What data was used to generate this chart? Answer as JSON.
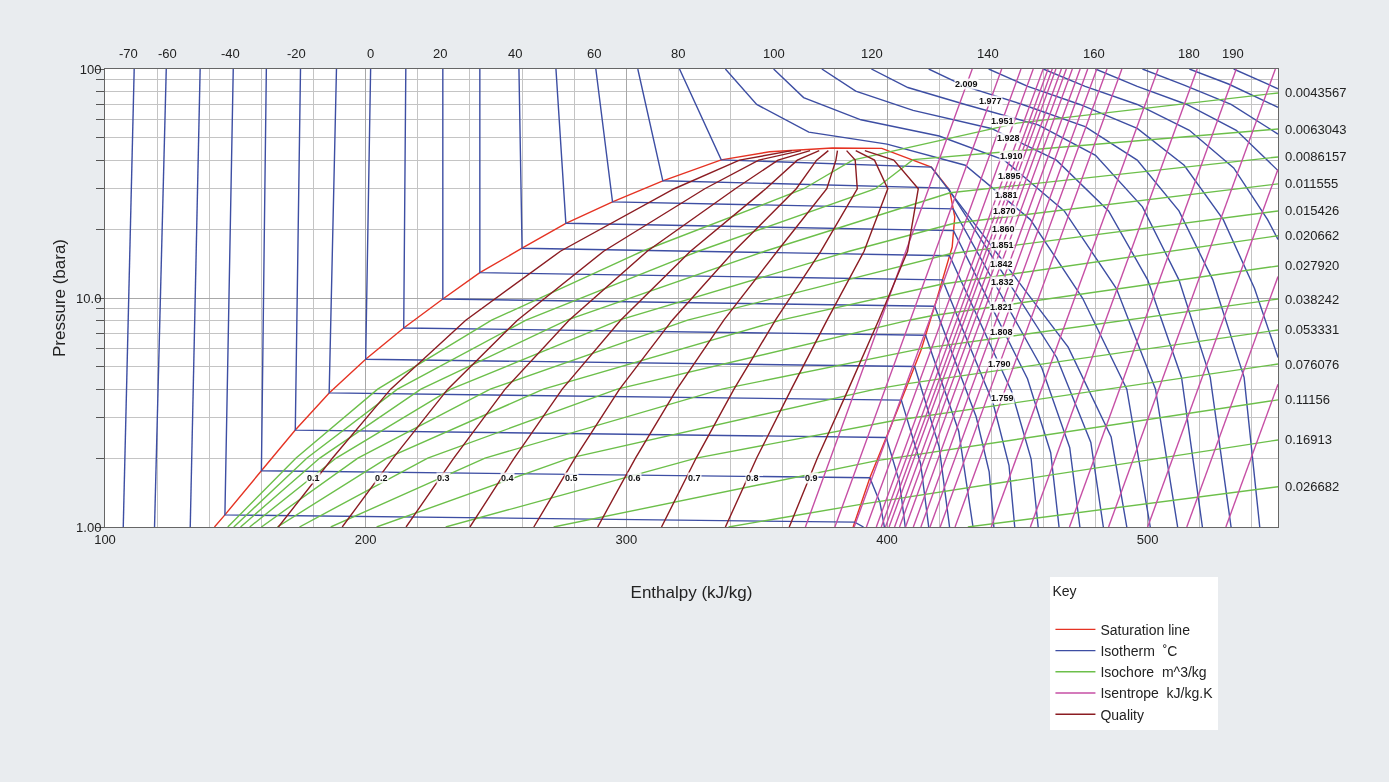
{
  "chart_data": {
    "type": "line",
    "xlabel": "Enthalpy (kJ/kg)",
    "ylabel": "Pressure (bara)",
    "legend_title": "Key",
    "legend": "bottom right",
    "grid": true,
    "log": true,
    "marker": "none",
    "line_style": "solid",
    "xlim": [
      100,
      550
    ],
    "xticks": [
      100,
      200,
      300,
      400,
      500
    ],
    "ylim": [
      1,
      100
    ],
    "yticks": [
      {
        "value": 1,
        "label": "1.00"
      },
      {
        "value": 10,
        "label": "10.0"
      },
      100
    ],
    "series": [
      {
        "name": "Saturation line",
        "color": "#e53323",
        "x": [
          142,
          146,
          160,
          173,
          186,
          200,
          214.6,
          229.6,
          243.8,
          260,
          276.8,
          294.7,
          314,
          336.4,
          355,
          379,
          398,
          417,
          424,
          426,
          425,
          419,
          413,
          404,
          393.5,
          387
        ],
        "values": [
          1,
          1.13,
          1.76,
          2.65,
          3.85,
          5.4,
          7.4,
          9.9,
          12.9,
          16.5,
          21.2,
          26.3,
          32.5,
          40.1,
          43.5,
          45.2,
          45,
          37.3,
          29.6,
          22.6,
          16.7,
          9.8,
          5.9,
          3.24,
          1.65,
          1
        ]
      },
      {
        "name": "Isotherm  ˚C",
        "color": "#3d4ea3",
        "x": [
          111.2,
          107
        ],
        "values": [
          100,
          1
        ]
      },
      {
        "color": "#3d4ea3",
        "x": [
          123.5,
          119
        ],
        "values": [
          100,
          1
        ]
      },
      {
        "color": "#3d4ea3",
        "x": [
          136.5,
          132.7
        ],
        "values": [
          100,
          1
        ]
      },
      {
        "color": "#3d4ea3",
        "x": [
          149.2,
          146,
          387.6,
          391
        ],
        "values": [
          100,
          1.13,
          1.05,
          1
        ]
      },
      {
        "color": "#3d4ea3",
        "x": [
          161.9,
          160,
          393.4,
          397.3,
          399
        ],
        "values": [
          100,
          1.76,
          1.64,
          1.28,
          1
        ]
      },
      {
        "color": "#3d4ea3",
        "x": [
          175,
          173,
          399.7,
          404.8,
          407
        ],
        "values": [
          100,
          2.65,
          2.46,
          1.57,
          1
        ]
      },
      {
        "color": "#3d4ea3",
        "x": [
          188.8,
          186,
          405.5,
          412.9,
          416
        ],
        "values": [
          100,
          3.85,
          3.58,
          1.89,
          1
        ]
      },
      {
        "color": "#3d4ea3",
        "x": [
          201.9,
          200,
          410.6,
          420,
          424
        ],
        "values": [
          100,
          5.4,
          5.02,
          2.24,
          1
        ]
      },
      {
        "color": "#3d4ea3",
        "x": [
          215.4,
          214.6,
          414.8,
          427.5,
          433
        ],
        "values": [
          100,
          7.4,
          6.88,
          2.62,
          1
        ]
      },
      {
        "color": "#3d4ea3",
        "x": [
          229.6,
          229.6,
          418.3,
          426.2,
          434.2,
          439.2,
          441
        ],
        "values": [
          100,
          9.9,
          9.2,
          5.28,
          3.03,
          1.74,
          1
        ]
      },
      {
        "color": "#3d4ea3",
        "x": [
          243.8,
          243.8,
          421.3,
          431,
          440.7,
          446.8,
          449
        ],
        "values": [
          100,
          12.9,
          12,
          6.44,
          3.47,
          1.86,
          1
        ]
      },
      {
        "color": "#3d4ea3",
        "x": [
          258.8,
          260,
          424,
          435.9,
          447.8,
          455.3,
          458
        ],
        "values": [
          100,
          16.5,
          15.3,
          7.74,
          3.91,
          1.98,
          1
        ]
      },
      {
        "color": "#3d4ea3",
        "x": [
          273,
          276.8,
          425.5,
          439.7,
          453.9,
          462.8,
          466
        ],
        "values": [
          100,
          21.2,
          19.7,
          9.35,
          4.44,
          2.11,
          1
        ]
      },
      {
        "color": "#3d4ea3",
        "x": [
          288.3,
          294.7,
          425.4,
          442.4,
          459.4,
          470.1,
          474
        ],
        "values": [
          100,
          26.3,
          24.5,
          11,
          4.95,
          2.22,
          1
        ]
      },
      {
        "color": "#3d4ea3",
        "x": [
          304.4,
          314,
          423.4,
          444.3,
          465.1,
          478.2,
          483
        ],
        "values": [
          100,
          32.5,
          30.2,
          12.9,
          5.5,
          2.34,
          1
        ]
      },
      {
        "color": "#3d4ea3",
        "x": [
          320.4,
          336.4,
          417,
          443.3,
          469.5,
          486,
          492
        ],
        "values": [
          100,
          40.1,
          37.3,
          15.1,
          6.1,
          2.47,
          1
        ]
      },
      {
        "color": "#3d4ea3",
        "x": [
          338,
          350,
          370,
          400,
          430,
          455,
          475,
          492,
          501
        ],
        "values": [
          100,
          70,
          53,
          47,
          38,
          22,
          10,
          4,
          1
        ]
      },
      {
        "color": "#3d4ea3",
        "x": [
          356.5,
          368,
          390,
          420,
          445,
          468,
          488,
          503,
          511.5
        ],
        "values": [
          100,
          75,
          60,
          51,
          40,
          24,
          11,
          4,
          1
        ]
      },
      {
        "color": "#3d4ea3",
        "x": [
          375,
          388,
          410,
          440,
          465,
          485,
          500,
          513,
          521
        ],
        "values": [
          100,
          80,
          66,
          55,
          40,
          24,
          12,
          4.5,
          1
        ]
      },
      {
        "color": "#3d4ea3",
        "x": [
          394,
          408,
          430,
          458,
          480,
          498,
          512,
          524,
          532
        ],
        "values": [
          100,
          83,
          70,
          57,
          42,
          25,
          12,
          4.5,
          1
        ]
      },
      {
        "color": "#3d4ea3",
        "x": [
          416,
          430,
          452,
          476,
          496,
          512,
          525,
          537,
          543
        ],
        "values": [
          100,
          84,
          70,
          56,
          40,
          24,
          12,
          4.5,
          1
        ]
      },
      {
        "color": "#3d4ea3",
        "x": [
          439,
          454,
          474,
          496,
          514,
          529,
          541,
          550
        ],
        "values": [
          100,
          84,
          70,
          55,
          38,
          22,
          11,
          5.5
        ]
      },
      {
        "color": "#3d4ea3",
        "x": [
          460,
          476,
          496,
          516,
          533,
          546,
          550
        ],
        "values": [
          100,
          84,
          70,
          54,
          37,
          22,
          18
        ]
      },
      {
        "color": "#3d4ea3",
        "x": [
          480,
          496,
          515,
          534,
          550
        ],
        "values": [
          100,
          84,
          70,
          54,
          36
        ]
      },
      {
        "color": "#3d4ea3",
        "x": [
          498,
          514,
          532,
          550
        ],
        "values": [
          100,
          85,
          70,
          52
        ]
      },
      {
        "color": "#3d4ea3",
        "x": [
          516,
          531,
          550
        ],
        "values": [
          100,
          86,
          68
        ]
      },
      {
        "color": "#3d4ea3",
        "x": [
          533,
          550
        ],
        "values": [
          100,
          82
        ]
      },
      {
        "name": "Isochore  m^3/kg",
        "color": "#6cbf4a",
        "x": [
          147.1,
          173.3,
          204.6,
          248.3,
          306.1,
          368.1,
          386.8,
          450,
          550
        ],
        "values": [
          1,
          2,
          4,
          8,
          16,
          30,
          40,
          58,
          78.6
        ]
      },
      {
        "color": "#6cbf4a",
        "x": [
          149.4,
          177.5,
          212.2,
          261.5,
          327.6,
          395.6,
          410,
          550
        ],
        "values": [
          1,
          2,
          4,
          8,
          16,
          30,
          40.2,
          54.7
        ]
      },
      {
        "color": "#6cbf4a",
        "x": [
          152,
          182.4,
          221.2,
          277.2,
          353.1,
          424.2,
          550
        ],
        "values": [
          1,
          2,
          4,
          8,
          16,
          28.8,
          41.3
        ]
      },
      {
        "color": "#6cbf4a",
        "x": [
          155.5,
          188.7,
          232.7,
          297.2,
          385.5,
          425.8,
          550
        ],
        "values": [
          1,
          2,
          4,
          8,
          16,
          21.2,
          31.5
        ]
      },
      {
        "color": "#6cbf4a",
        "x": [
          160,
          197,
          247.8,
          323.5,
          424.2,
          550
        ],
        "values": [
          1,
          2,
          4,
          8,
          15.6,
          24
        ]
      },
      {
        "color": "#6cbf4a",
        "x": [
          166.1,
          208.2,
          268.2,
          359.2,
          420.8,
          550
        ],
        "values": [
          1,
          2,
          4,
          8,
          11.48,
          18.7
        ]
      },
      {
        "color": "#6cbf4a",
        "x": [
          174.6,
          223.8,
          296.5,
          408.5,
          417.1,
          550
        ],
        "values": [
          1,
          2,
          4,
          8,
          8.37,
          13.8
        ]
      },
      {
        "color": "#6cbf4a",
        "x": [
          186.6,
          245.8,
          336.7,
          413.2,
          550
        ],
        "values": [
          1,
          2,
          4,
          6.01,
          9.9
        ]
      },
      {
        "color": "#6cbf4a",
        "x": [
          204.2,
          278.2,
          395.6,
          408,
          550
        ],
        "values": [
          1,
          2,
          4,
          4.23,
          7.25
        ]
      },
      {
        "color": "#6cbf4a",
        "x": [
          230.7,
          326.8,
          402.3,
          550
        ],
        "values": [
          1,
          2,
          2.91,
          5.15
        ]
      },
      {
        "color": "#6cbf4a",
        "x": [
          272.1,
          396.1,
          550
        ],
        "values": [
          1,
          1.95,
          3.59
        ]
      },
      {
        "color": "#6cbf4a",
        "x": [
          339.2,
          389.9,
          550
        ],
        "values": [
          1,
          1.256,
          2.4
        ]
      },
      {
        "color": "#6cbf4a",
        "x": [
          431,
          550
        ],
        "values": [
          1,
          1.5
        ]
      },
      {
        "name": "Isentrope  kJ/kg.K",
        "color": "#c64fa5",
        "x": [
          368.7,
          430.6,
          432.7
        ],
        "values": [
          1,
          86,
          100
        ]
      },
      {
        "color": "#c64fa5",
        "x": [
          380,
          439.6,
          444
        ],
        "values": [
          1,
          72.6,
          100
        ]
      },
      {
        "color": "#c64fa5",
        "x": [
          387.4,
          444.2,
          451.4
        ],
        "values": [
          1,
          59.4,
          100
        ]
      },
      {
        "color": "#c64fa5",
        "x": [
          392.1,
          446.5,
          456.1
        ],
        "values": [
          1,
          50,
          100
        ]
      },
      {
        "color": "#c64fa5",
        "x": [
          395.9,
          447.7,
          459.9
        ],
        "values": [
          1,
          41.7,
          100
        ]
      },
      {
        "color": "#c64fa5",
        "x": [
          397.8,
          446.9,
          461.8
        ],
        "values": [
          1,
          34.1,
          100
        ]
      },
      {
        "color": "#c64fa5",
        "x": [
          399.4,
          445.8,
          463.4
        ],
        "values": [
          1,
          28.1,
          100
        ]
      },
      {
        "color": "#c64fa5",
        "x": [
          400.8,
          445,
          464.8
        ],
        "values": [
          1,
          24,
          100
        ]
      },
      {
        "color": "#c64fa5",
        "x": [
          402.9,
          444.6,
          466.9
        ],
        "values": [
          1,
          20.1,
          100
        ]
      },
      {
        "color": "#c64fa5",
        "x": [
          404.8,
          444.2,
          468.8
        ],
        "values": [
          1,
          17,
          100
        ]
      },
      {
        "color": "#c64fa5",
        "x": [
          407.1,
          443.8,
          471.1
        ],
        "values": [
          1,
          14.1,
          100
        ]
      },
      {
        "color": "#c64fa5",
        "x": [
          410.1,
          444.2,
          474.1
        ],
        "values": [
          1,
          11.7,
          100
        ]
      },
      {
        "color": "#c64fa5",
        "x": [
          413,
          443.8,
          477
        ],
        "values": [
          1,
          9.16,
          100
        ]
      },
      {
        "color": "#c64fa5",
        "x": [
          416.5,
          443.8,
          480.5
        ],
        "values": [
          1,
          7.13,
          100
        ]
      },
      {
        "color": "#c64fa5",
        "x": [
          420.4,
          443.1,
          484.4
        ],
        "values": [
          1,
          5.13,
          100
        ]
      },
      {
        "color": "#c64fa5",
        "x": [
          426.1,
          444.2,
          490.1
        ],
        "values": [
          1,
          3.67,
          100
        ]
      },
      {
        "color": "#c64fa5",
        "x": [
          440,
          504
        ],
        "values": [
          1,
          100
        ]
      },
      {
        "color": "#c64fa5",
        "x": [
          455,
          519
        ],
        "values": [
          1,
          100
        ]
      },
      {
        "color": "#c64fa5",
        "x": [
          470,
          534
        ],
        "values": [
          1,
          100
        ]
      },
      {
        "color": "#c64fa5",
        "x": [
          485,
          549
        ],
        "values": [
          1,
          100
        ]
      },
      {
        "color": "#c64fa5",
        "x": [
          500,
          550
        ],
        "values": [
          1,
          36.5
        ]
      },
      {
        "color": "#c64fa5",
        "x": [
          515,
          550
        ],
        "values": [
          1,
          12.4
        ]
      },
      {
        "color": "#c64fa5",
        "x": [
          530,
          550
        ],
        "values": [
          1,
          4.2
        ]
      },
      {
        "name": "Quality",
        "color": "#8b1c22",
        "x": [
          166.5,
          187.3,
          209.6,
          238.4,
          274.7,
          318.4,
          343.4,
          363.5
        ],
        "values": [
          1,
          2,
          4,
          8,
          16,
          30,
          40,
          44
        ]
      },
      {
        "color": "#8b1c22",
        "x": [
          191,
          210.5,
          231.5,
          258.2,
          291.3,
          330.1,
          350.8,
          367
        ],
        "values": [
          1,
          2,
          4,
          8,
          16,
          30,
          40,
          44
        ]
      },
      {
        "color": "#8b1c22",
        "x": [
          215.5,
          233.8,
          253.5,
          278,
          308,
          341.8,
          358.2,
          370.5
        ],
        "values": [
          1,
          2,
          4,
          8,
          16,
          30,
          40,
          44
        ]
      },
      {
        "color": "#8b1c22",
        "x": [
          240,
          257,
          275.4,
          297.8,
          324.6,
          353.5,
          365.6,
          374
        ],
        "values": [
          1,
          2,
          4,
          8,
          16,
          30,
          40,
          44
        ]
      },
      {
        "color": "#8b1c22",
        "x": [
          264.5,
          280.3,
          297.4,
          317.6,
          341.3,
          365.2,
          373,
          377.5
        ],
        "values": [
          1,
          2,
          4,
          8,
          16,
          30,
          40,
          44
        ]
      },
      {
        "color": "#8b1c22",
        "x": [
          289,
          303.5,
          319.4,
          337.4,
          357.9,
          376.9,
          380.4,
          381
        ],
        "values": [
          1,
          2,
          4,
          8,
          16,
          30,
          40,
          44
        ]
      },
      {
        "color": "#8b1c22",
        "x": [
          313.5,
          326.8,
          341.3,
          357.2,
          374.6,
          388.6,
          387.8,
          384.5
        ],
        "values": [
          1,
          2,
          4,
          8,
          16,
          30,
          40,
          44
        ]
      },
      {
        "color": "#8b1c22",
        "x": [
          338,
          350,
          363.3,
          377,
          391.2,
          400.3,
          395.2,
          388
        ],
        "values": [
          1,
          2,
          4,
          8,
          16,
          30,
          40,
          44
        ]
      },
      {
        "color": "#8b1c22",
        "x": [
          362.5,
          373.3,
          385.2,
          396.8,
          407.9,
          412,
          402.6,
          391.5
        ],
        "values": [
          1,
          2,
          4,
          8,
          16,
          30,
          40,
          44
        ]
      }
    ],
    "annotations": [
      {
        "text": "-70",
        "x": 109.2,
        "y": 100
      },
      {
        "text": "-60",
        "x": 123.8,
        "y": 100
      },
      {
        "text": "-40",
        "x": 148.1,
        "y": 100
      },
      {
        "text": "-20",
        "x": 173.5,
        "y": 100
      },
      {
        "text": "0",
        "x": 201.9,
        "y": 100
      },
      {
        "text": "20",
        "x": 228.5,
        "y": 100
      },
      {
        "text": "40",
        "x": 257.3,
        "y": 100
      },
      {
        "text": "60",
        "x": 287.7,
        "y": 100
      },
      {
        "text": "80",
        "x": 320,
        "y": 100
      },
      {
        "text": "100",
        "x": 356.5,
        "y": 100
      },
      {
        "text": "120",
        "x": 394.2,
        "y": 100
      },
      {
        "text": "140",
        "x": 438.8,
        "y": 100
      },
      {
        "text": "160",
        "x": 479.6,
        "y": 100
      },
      {
        "text": "180",
        "x": 515.8,
        "y": 100
      },
      {
        "text": "190",
        "x": 532.7,
        "y": 100
      },
      {
        "text": "0.0043567",
        "x": 550,
        "y": 78.6
      },
      {
        "text": "0.0063043",
        "x": 550,
        "y": 54.7
      },
      {
        "text": "0.0086157",
        "x": 550,
        "y": 41.3
      },
      {
        "text": "0.011555",
        "x": 550,
        "y": 31.5
      },
      {
        "text": "0.015426",
        "x": 550,
        "y": 24
      },
      {
        "text": "0.020662",
        "x": 550,
        "y": 18.7
      },
      {
        "text": "0.027920",
        "x": 550,
        "y": 13.8
      },
      {
        "text": "0.038242",
        "x": 550,
        "y": 9.9
      },
      {
        "text": "0.053331",
        "x": 550,
        "y": 7.25
      },
      {
        "text": "0.076076",
        "x": 550,
        "y": 5.15
      },
      {
        "text": "0.11156",
        "x": 550,
        "y": 3.59
      },
      {
        "text": "0.16913",
        "x": 550,
        "y": 2.4
      },
      {
        "text": "0.026682",
        "x": 550,
        "y": 1.5
      },
      {
        "text": "2.009",
        "x": 430.6,
        "y": 86
      },
      {
        "text": "1.977",
        "x": 439.6,
        "y": 72.6
      },
      {
        "text": "1.951",
        "x": 444.2,
        "y": 59.4
      },
      {
        "text": "1.928",
        "x": 446.5,
        "y": 50
      },
      {
        "text": "1.910",
        "x": 447.7,
        "y": 41.7
      },
      {
        "text": "1.895",
        "x": 446.9,
        "y": 34.1
      },
      {
        "text": "1.881",
        "x": 445.8,
        "y": 28.1
      },
      {
        "text": "1.870",
        "x": 445,
        "y": 24
      },
      {
        "text": "1.860",
        "x": 444.6,
        "y": 20.1
      },
      {
        "text": "1.851",
        "x": 444.2,
        "y": 17
      },
      {
        "text": "1.842",
        "x": 443.8,
        "y": 14.1
      },
      {
        "text": "1.832",
        "x": 444.2,
        "y": 11.7
      },
      {
        "text": "1.821",
        "x": 443.8,
        "y": 9.16
      },
      {
        "text": "1.808",
        "x": 443.8,
        "y": 7.13
      },
      {
        "text": "1.790",
        "x": 443.1,
        "y": 5.13
      },
      {
        "text": "1.759",
        "x": 444.2,
        "y": 3.67
      },
      {
        "text": "0.1",
        "x": 180,
        "y": 1.64
      },
      {
        "text": "0.2",
        "x": 206,
        "y": 1.64
      },
      {
        "text": "0.3",
        "x": 230,
        "y": 1.64
      },
      {
        "text": "0.4",
        "x": 254.6,
        "y": 1.64
      },
      {
        "text": "0.5",
        "x": 279,
        "y": 1.64
      },
      {
        "text": "0.6",
        "x": 303,
        "y": 1.64
      },
      {
        "text": "0.7",
        "x": 326,
        "y": 1.64
      },
      {
        "text": "0.8",
        "x": 348.5,
        "y": 1.64
      },
      {
        "text": "0.9",
        "x": 371,
        "y": 1.64
      }
    ]
  }
}
